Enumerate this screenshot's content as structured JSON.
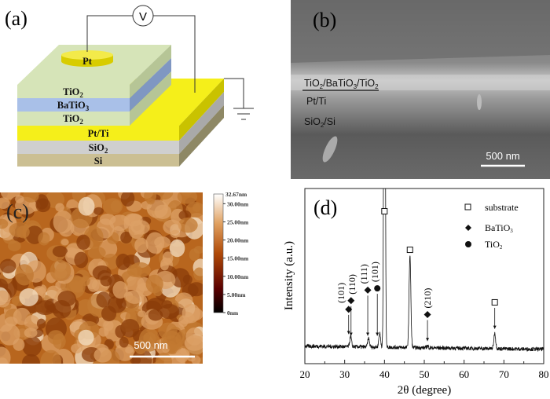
{
  "panel_a": {
    "label": "(a)",
    "voltmeter": "V",
    "layers": {
      "pt_top": "Pt",
      "tio2_top": {
        "main": "TiO",
        "sub": "2"
      },
      "batio3": {
        "main": "BaTiO",
        "sub": "3"
      },
      "tio2_bottom": {
        "main": "TiO",
        "sub": "2"
      },
      "pt_ti": "Pt/Ti",
      "sio2": {
        "main": "SiO",
        "sub": "2"
      },
      "si": "Si"
    },
    "colors": {
      "tio2": "#d6e4b8",
      "batio3": "#a9c0e8",
      "pt": "#f5ef1a",
      "sio2": "#cfcfcf",
      "si": "#cbbf93"
    }
  },
  "panel_b": {
    "label": "(b)",
    "annotations": {
      "stack": {
        "p1": "TiO",
        "s1": "2",
        "p2": "/BaTiO",
        "s2": "3",
        "p3": "/TiO",
        "s3": "2"
      },
      "electrode": "Pt/Ti",
      "substrate": {
        "main": "SiO",
        "sub": "2",
        "rest": "/Si"
      }
    },
    "scale_bar": "500 nm"
  },
  "panel_c": {
    "label": "(c)",
    "scale_bar": "500 nm",
    "colorbar": {
      "max_label": "32.67nm",
      "ticks": [
        "30.00nm",
        "25.00nm",
        "20.00nm",
        "15.00nm",
        "10.00nm",
        "5.00nm",
        "0nm"
      ],
      "tick_values": [
        30,
        25,
        20,
        15,
        10,
        5,
        0
      ],
      "max": 32.67
    }
  },
  "chart_data": {
    "type": "line",
    "panel_label": "(d)",
    "xlabel": "2θ (degree)",
    "ylabel": "Intensity (a.u.)",
    "xlim": [
      20,
      80
    ],
    "xticks": [
      "20",
      "30",
      "40",
      "50",
      "60",
      "70",
      "80"
    ],
    "xtick_values": [
      20,
      30,
      40,
      50,
      60,
      70,
      80
    ],
    "ylim": [
      0,
      100
    ],
    "baseline": 10,
    "peaks": [
      {
        "x": 31.5,
        "intensity": 16
      },
      {
        "x": 36.0,
        "intensity": 15
      },
      {
        "x": 38.8,
        "intensity": 18
      },
      {
        "x": 40.0,
        "intensity": 300
      },
      {
        "x": 46.4,
        "intensity": 63
      },
      {
        "x": 50.8,
        "intensity": 11
      },
      {
        "x": 67.7,
        "intensity": 19
      }
    ],
    "legend": {
      "position": "top-right",
      "entries": [
        {
          "symbol": "open-square",
          "label": "substrate"
        },
        {
          "symbol": "filled-diamond",
          "label": "BaTiO",
          "sub": "3"
        },
        {
          "symbol": "filled-circle",
          "label": "TiO",
          "sub": "2"
        }
      ]
    },
    "annotations": [
      {
        "symbol": "filled-diamond",
        "x": 31.0,
        "y": 31,
        "target_y": 16,
        "hkl": "(101)"
      },
      {
        "symbol": "filled-diamond",
        "x": 31.6,
        "y": 36,
        "target_y": 15,
        "hkl": "(110)"
      },
      {
        "symbol": "filled-diamond",
        "x": 35.8,
        "y": 42,
        "target_y": 15,
        "hkl": "(111)"
      },
      {
        "symbol": "filled-circle",
        "x": 38.2,
        "y": 43,
        "target_y": 15,
        "hkl": "(101)"
      },
      {
        "symbol": "open-square",
        "x": 40.0,
        "y": 87,
        "target_y": null,
        "hkl": ""
      },
      {
        "symbol": "open-square",
        "x": 46.4,
        "y": 65,
        "target_y": null,
        "hkl": ""
      },
      {
        "symbol": "filled-diamond",
        "x": 50.8,
        "y": 28,
        "target_y": 12,
        "hkl": "(210)"
      },
      {
        "symbol": "open-square",
        "x": 67.7,
        "y": 35,
        "target_y": 19,
        "hkl": ""
      }
    ]
  }
}
